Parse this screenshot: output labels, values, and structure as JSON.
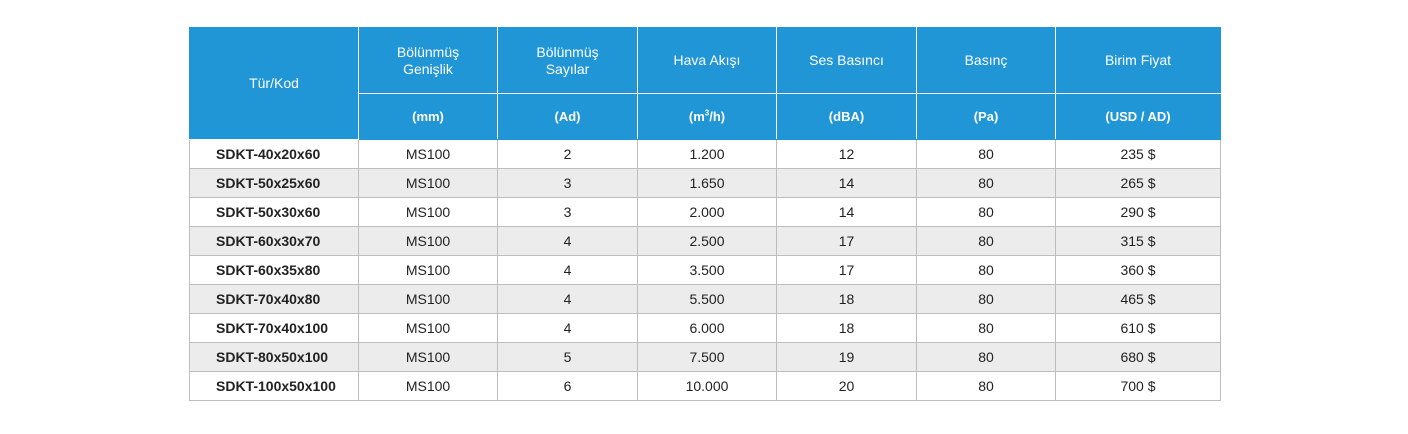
{
  "table": {
    "headers": {
      "type_code": "Tür/Kod",
      "split_width": [
        "Bölünmüş",
        "Genişlik"
      ],
      "split_count": [
        "Bölünmüş",
        "Sayılar"
      ],
      "airflow": "Hava Akışı",
      "sound_pressure": "Ses Basıncı",
      "pressure": "Basınç",
      "unit_price": "Birim Fiyat"
    },
    "units": {
      "split_width": "(mm)",
      "split_count": "(Ad)",
      "airflow_prefix": "(m",
      "airflow_sup": "3",
      "airflow_suffix": "/h)",
      "sound_pressure": "(dBA)",
      "pressure": "(Pa)",
      "unit_price": "(USD / AD)"
    },
    "rows": [
      {
        "code": "SDKT-40x20x60",
        "width": "MS100",
        "count": "2",
        "airflow": "1.200",
        "sound": "12",
        "pressure": "80",
        "price": "235 $"
      },
      {
        "code": "SDKT-50x25x60",
        "width": "MS100",
        "count": "3",
        "airflow": "1.650",
        "sound": "14",
        "pressure": "80",
        "price": "265 $"
      },
      {
        "code": "SDKT-50x30x60",
        "width": "MS100",
        "count": "3",
        "airflow": "2.000",
        "sound": "14",
        "pressure": "80",
        "price": "290 $"
      },
      {
        "code": "SDKT-60x30x70",
        "width": "MS100",
        "count": "4",
        "airflow": "2.500",
        "sound": "17",
        "pressure": "80",
        "price": "315 $"
      },
      {
        "code": "SDKT-60x35x80",
        "width": "MS100",
        "count": "4",
        "airflow": "3.500",
        "sound": "17",
        "pressure": "80",
        "price": "360 $"
      },
      {
        "code": "SDKT-70x40x80",
        "width": "MS100",
        "count": "4",
        "airflow": "5.500",
        "sound": "18",
        "pressure": "80",
        "price": "465 $"
      },
      {
        "code": "SDKT-70x40x100",
        "width": "MS100",
        "count": "4",
        "airflow": "6.000",
        "sound": "18",
        "pressure": "80",
        "price": "610 $"
      },
      {
        "code": "SDKT-80x50x100",
        "width": "MS100",
        "count": "5",
        "airflow": "7.500",
        "sound": "19",
        "pressure": "80",
        "price": "680 $"
      },
      {
        "code": "SDKT-100x50x100",
        "width": "MS100",
        "count": "6",
        "airflow": "10.000",
        "sound": "20",
        "pressure": "80",
        "price": "700 $"
      }
    ]
  },
  "colors": {
    "header_bg": "#2196d6",
    "header_text": "#ffffff",
    "row_alt_bg": "#ececec",
    "border": "#bdbdbd"
  }
}
